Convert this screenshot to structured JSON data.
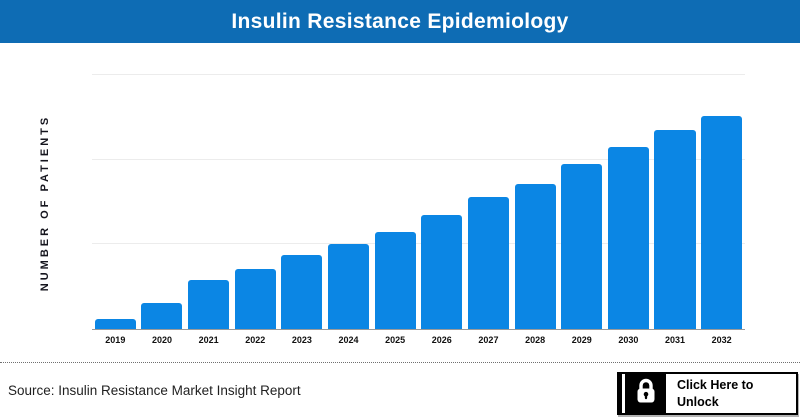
{
  "header": {
    "title": "Insulin Resistance Epidemiology",
    "background": "#0e6cb4",
    "text_color": "#ffffff"
  },
  "chart_data": {
    "type": "bar",
    "title": "Insulin Resistance Epidemiology",
    "categories": [
      "2019",
      "2020",
      "2021",
      "2022",
      "2023",
      "2024",
      "2025",
      "2026",
      "2027",
      "2028",
      "2029",
      "2030",
      "2031",
      "2032"
    ],
    "values": [
      12,
      31,
      58,
      71,
      87,
      100,
      115,
      135,
      156,
      171,
      195,
      215,
      235,
      252
    ],
    "units": "relative units (y-axis has no tick labels in source image)",
    "xlabel": "",
    "ylabel": "NUMBER OF PATIENTS",
    "ylim": [
      0,
      300
    ],
    "gridline_values": [
      100,
      200,
      300
    ],
    "grid": true,
    "legend": false,
    "bar_color": "#0b86e4",
    "gridline_color": "#ececec",
    "axis_line_color": "#9a9a9a"
  },
  "footer": {
    "source": "Source: Insulin Resistance Market Insight Report",
    "unlock_button": {
      "label": "Click Here to Unlock",
      "icon": "lock"
    }
  }
}
